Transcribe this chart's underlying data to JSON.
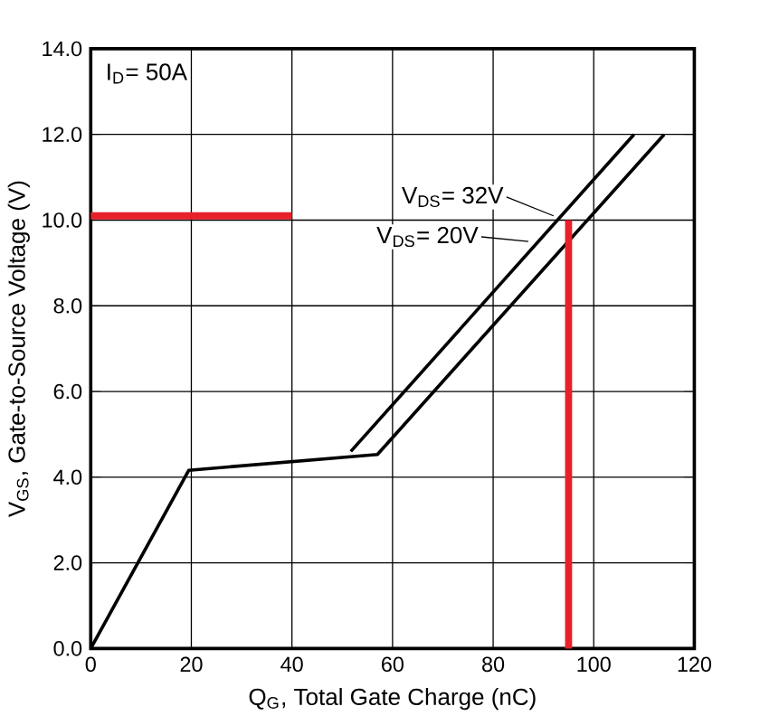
{
  "chart_data": {
    "type": "line",
    "xlabel": "Q$_{G}$,  Total Gate Charge (nC)",
    "ylabel": "V$_{GS}$, Gate-to-Source Voltage (V)",
    "xlim": [
      0,
      120
    ],
    "ylim": [
      0,
      14
    ],
    "xticks": [
      0,
      20,
      40,
      60,
      80,
      100,
      120
    ],
    "yticks": [
      {
        "value": 0,
        "label": "0.0"
      },
      {
        "value": 2,
        "label": "2.0"
      },
      {
        "value": 4,
        "label": "4.0"
      },
      {
        "value": 6,
        "label": "6.0"
      },
      {
        "value": 8,
        "label": "8.0"
      },
      {
        "value": 10,
        "label": "10.0"
      },
      {
        "value": 12,
        "label": "12.0"
      },
      {
        "value": 14,
        "label": "14.0"
      }
    ],
    "grid": true,
    "series": [
      {
        "color": "#000000",
        "x": [
          0,
          19.5,
          57,
          114
        ],
        "values": [
          0,
          4.16,
          4.53,
          12.0
        ]
      },
      {
        "color": "#000000",
        "x": [
          51.7,
          108
        ],
        "values": [
          4.6,
          12.0
        ]
      },
      {
        "color": "#e8202a",
        "x": [
          0,
          40
        ],
        "values": [
          10.1,
          10.1
        ]
      },
      {
        "color": "#e8202a",
        "x": [
          95,
          95
        ],
        "values": [
          0,
          10.0
        ]
      }
    ],
    "annotations": [
      "I$_{D}$= 50A",
      {
        "text": "V$_{DS}$= 32V",
        "x": 92,
        "y": 10.1
      },
      {
        "text": "V$_{DS}$= 20V",
        "x": 87,
        "y": 9.5
      }
    ]
  }
}
